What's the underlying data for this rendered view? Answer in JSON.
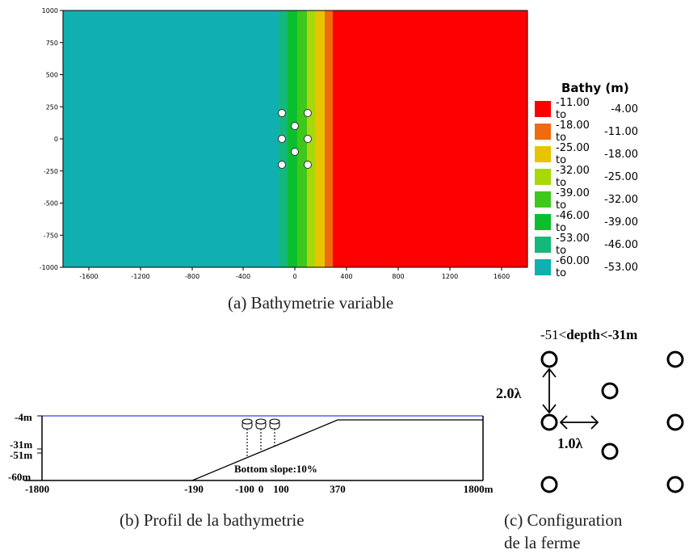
{
  "panel_a": {
    "caption": "(a) Bathymetrie variable",
    "y_ticks": [
      "1000",
      "750",
      "500",
      "250",
      "0",
      "-250",
      "-500",
      "-750",
      "-1000"
    ],
    "x_ticks": [
      "-1600",
      "-1200",
      "-800",
      "-400",
      "0",
      "400",
      "800",
      "1200",
      "1600"
    ],
    "legend_title": "Bathy (m)",
    "legend": [
      {
        "from": "-11.00 to",
        "to": "-4.00",
        "color": "#ff0000"
      },
      {
        "from": "-18.00 to",
        "to": "-11.00",
        "color": "#f06a10"
      },
      {
        "from": "-25.00 to",
        "to": "-18.00",
        "color": "#e8c300"
      },
      {
        "from": "-32.00 to",
        "to": "-25.00",
        "color": "#a8d80a"
      },
      {
        "from": "-39.00 to",
        "to": "-32.00",
        "color": "#3ec81c"
      },
      {
        "from": "-46.00 to",
        "to": "-39.00",
        "color": "#0abf2e"
      },
      {
        "from": "-53.00 to",
        "to": "-46.00",
        "color": "#14b878"
      },
      {
        "from": "-60.00 to",
        "to": "-53.00",
        "color": "#10b0b0"
      }
    ]
  },
  "panel_b": {
    "caption": "(b) Profil de la bathymetrie",
    "depth_labels": [
      "-4m",
      "-31m",
      "-51m",
      "-60m"
    ],
    "x_labels": [
      "-1800",
      "-190",
      "-100",
      "0",
      "100",
      "370",
      "1800m"
    ],
    "slope_label": "Bottom slope:10%"
  },
  "panel_c": {
    "caption_line1": "(c)     Configuration",
    "caption_line2": "de la ferme",
    "depth_label_pre": "-51<",
    "depth_label_bold": "depth",
    "depth_label_post": "<-31m",
    "vertical_spacing": "2.0λ",
    "horizontal_spacing": "1.0λ"
  }
}
